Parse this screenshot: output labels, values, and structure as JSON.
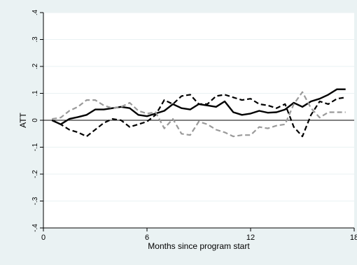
{
  "colors": {
    "page_background": "#eaf2f3",
    "plot_background": "#ffffff",
    "axis": "#000000",
    "gridline": "#eaf2f3",
    "zero_line": "#000000",
    "series_solid": "#000000",
    "series_dashed_black": "#000000",
    "series_dashed_gray": "#9a9a9a"
  },
  "chart_data": {
    "type": "line",
    "title": "",
    "xlabel": "Months since program start",
    "ylabel": "ATT",
    "xlim": [
      0,
      18
    ],
    "ylim": [
      -0.4,
      0.4
    ],
    "grid": true,
    "legend": "none",
    "x_ticks": [
      {
        "value": 0,
        "label": "0"
      },
      {
        "value": 6,
        "label": "6"
      },
      {
        "value": 12,
        "label": "12"
      },
      {
        "value": 18,
        "label": "18"
      }
    ],
    "y_ticks": [
      {
        "value": -0.4,
        "label": "-.4"
      },
      {
        "value": -0.3,
        "label": "-.3"
      },
      {
        "value": -0.2,
        "label": "-.2"
      },
      {
        "value": -0.1,
        "label": "-.1"
      },
      {
        "value": 0,
        "label": "0"
      },
      {
        "value": 0.1,
        "label": ".1"
      },
      {
        "value": 0.2,
        "label": ".2"
      },
      {
        "value": 0.3,
        "label": ".3"
      },
      {
        "value": 0.4,
        "label": ".4"
      }
    ],
    "reference_line_y": 0,
    "series": [
      {
        "style": "solid",
        "color": "#000000",
        "x": [
          0.5,
          1.0,
          1.5,
          2.0,
          2.5,
          3.0,
          3.5,
          4.0,
          4.5,
          5.0,
          5.5,
          6.0,
          6.5,
          7.0,
          7.5,
          8.0,
          8.5,
          9.0,
          9.5,
          10.0,
          10.5,
          11.0,
          11.5,
          12.0,
          12.5,
          13.0,
          13.5,
          14.0,
          14.5,
          15.0,
          15.5,
          16.0,
          16.5,
          17.0,
          17.5
        ],
        "y": [
          0.0,
          -0.015,
          0.005,
          0.012,
          0.02,
          0.04,
          0.04,
          0.045,
          0.05,
          0.045,
          0.02,
          0.015,
          0.025,
          0.035,
          0.06,
          0.045,
          0.04,
          0.06,
          0.055,
          0.05,
          0.07,
          0.03,
          0.02,
          0.025,
          0.035,
          0.028,
          0.03,
          0.04,
          0.065,
          0.05,
          0.07,
          0.08,
          0.095,
          0.115,
          0.115
        ]
      },
      {
        "style": "dashed",
        "color": "#000000",
        "x": [
          0.5,
          1.0,
          1.5,
          2.0,
          2.5,
          3.0,
          3.5,
          4.0,
          4.5,
          5.0,
          5.5,
          6.0,
          6.5,
          7.0,
          7.5,
          8.0,
          8.5,
          9.0,
          9.5,
          10.0,
          10.5,
          11.0,
          11.5,
          12.0,
          12.5,
          13.0,
          13.5,
          14.0,
          14.5,
          15.0,
          15.5,
          16.0,
          16.5,
          17.0,
          17.5
        ],
        "y": [
          0.0,
          -0.015,
          -0.035,
          -0.045,
          -0.06,
          -0.035,
          -0.01,
          0.005,
          0.0,
          -0.025,
          -0.015,
          -0.005,
          0.02,
          0.075,
          0.06,
          0.09,
          0.095,
          0.06,
          0.06,
          0.09,
          0.095,
          0.085,
          0.075,
          0.08,
          0.06,
          0.055,
          0.045,
          0.06,
          -0.025,
          -0.06,
          0.02,
          0.07,
          0.06,
          0.08,
          0.085
        ]
      },
      {
        "style": "dashed",
        "color": "#9a9a9a",
        "x": [
          0.5,
          1.0,
          1.5,
          2.0,
          2.5,
          3.0,
          3.5,
          4.0,
          4.5,
          5.0,
          5.5,
          6.0,
          6.5,
          7.0,
          7.5,
          8.0,
          8.5,
          9.0,
          9.5,
          10.0,
          10.5,
          11.0,
          11.5,
          12.0,
          12.5,
          13.0,
          13.5,
          14.0,
          14.5,
          15.0,
          15.5,
          16.0,
          16.5,
          17.0,
          17.5
        ],
        "y": [
          0.005,
          0.01,
          0.035,
          0.05,
          0.075,
          0.075,
          0.055,
          0.045,
          0.05,
          0.065,
          0.035,
          0.025,
          0.03,
          -0.03,
          0.005,
          -0.05,
          -0.055,
          -0.005,
          -0.015,
          -0.035,
          -0.045,
          -0.06,
          -0.055,
          -0.055,
          -0.025,
          -0.03,
          -0.02,
          -0.015,
          0.06,
          0.105,
          0.045,
          0.01,
          0.03,
          0.03,
          0.03
        ]
      }
    ]
  }
}
